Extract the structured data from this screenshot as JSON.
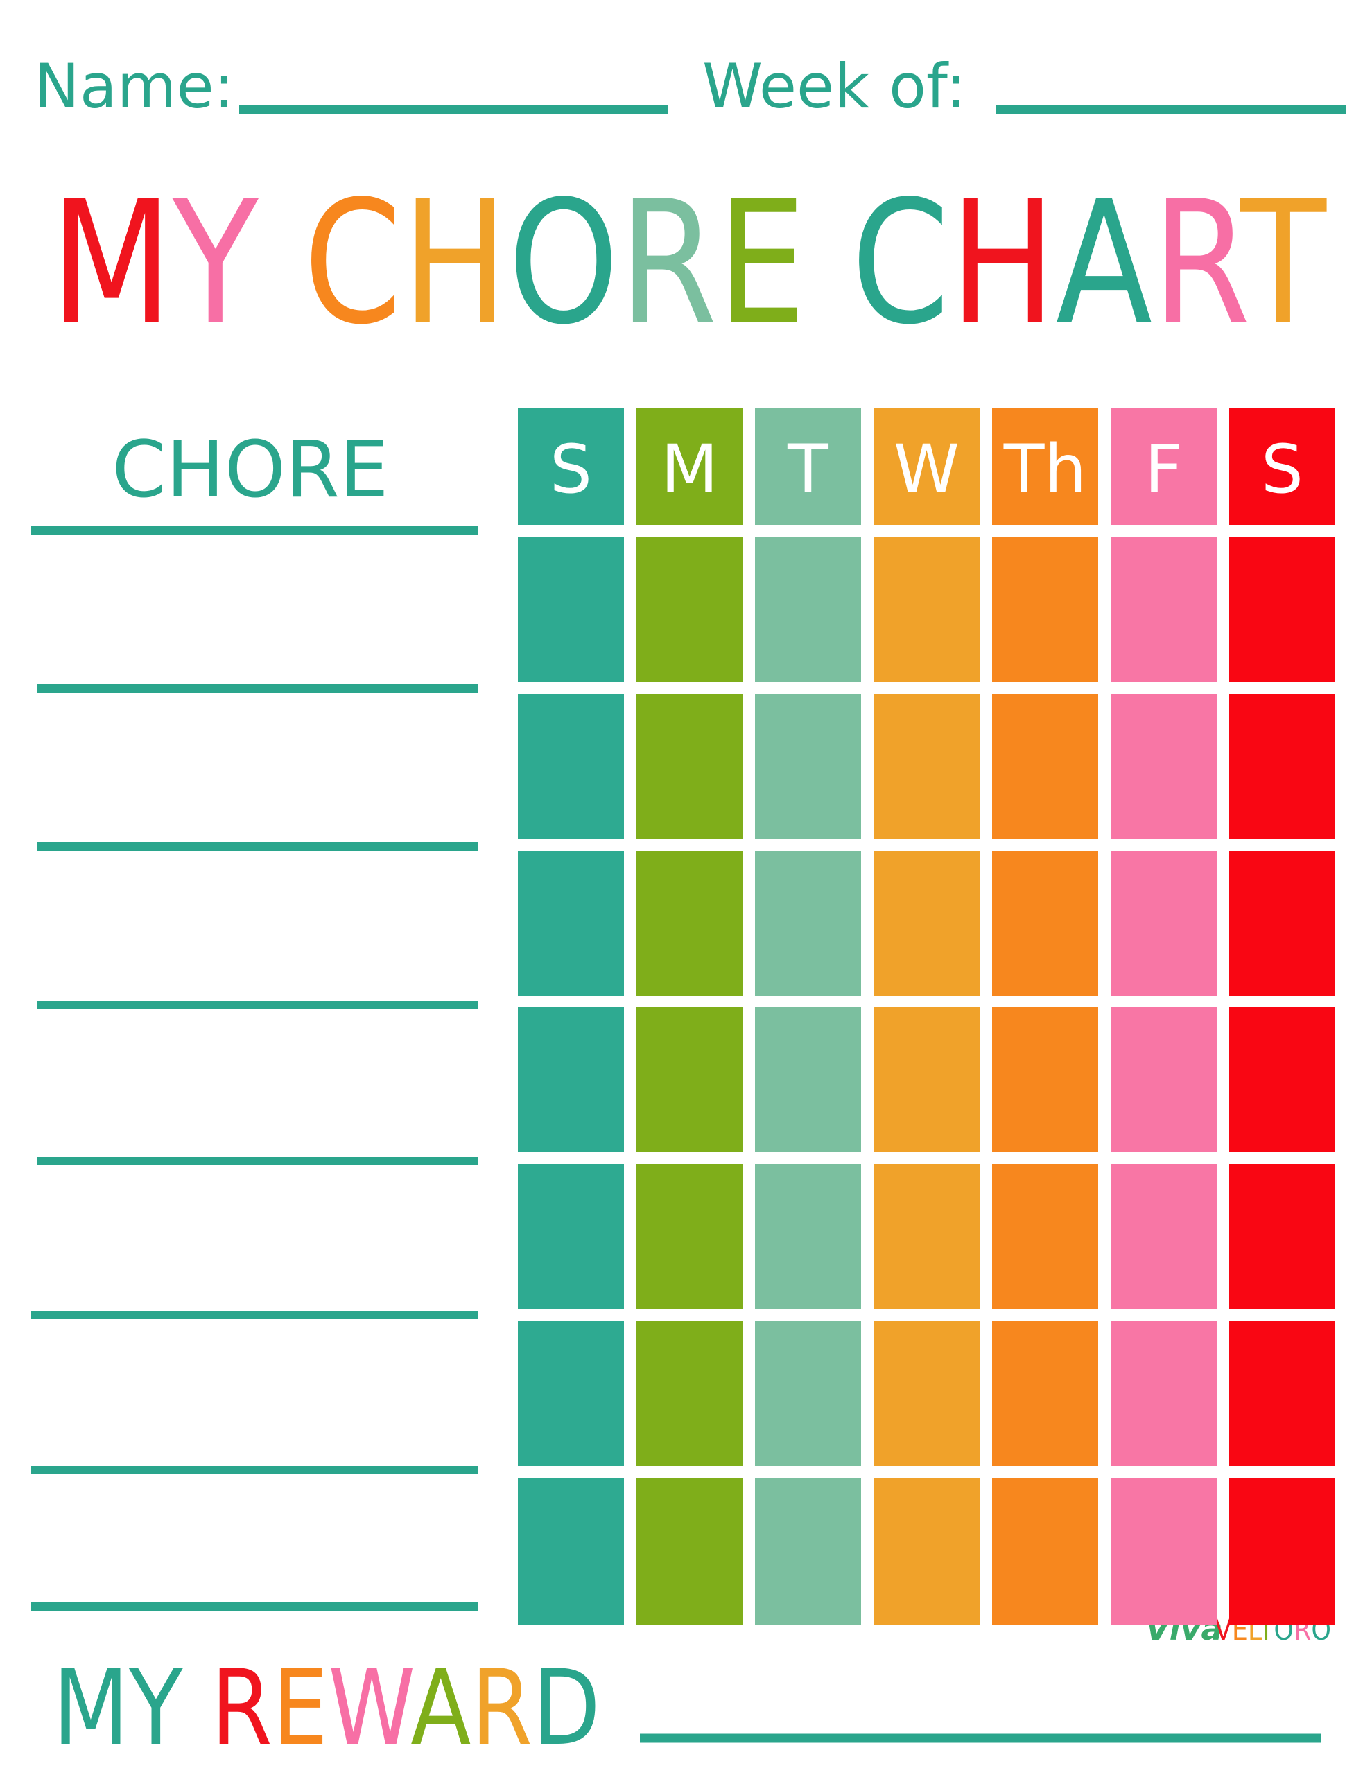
{
  "header": {
    "name_label": "Name:",
    "week_label": "Week of:"
  },
  "title": "MY CHORE CHART",
  "table": {
    "chore_header": "CHORE",
    "days": [
      "S",
      "M",
      "T",
      "W",
      "Th",
      "F",
      "S"
    ]
  },
  "reward_label": "MY REWARD",
  "watermark": {
    "script": "Viva",
    "brand": "VELTORO"
  }
}
